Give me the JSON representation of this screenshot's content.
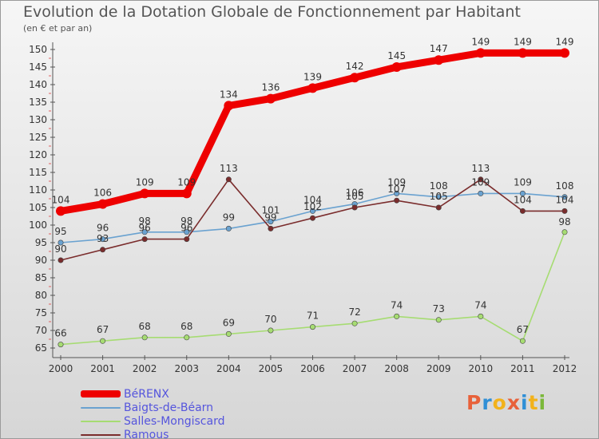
{
  "header": {
    "title": "Evolution de la Dotation Globale de Fonctionnement par Habitant",
    "subtitle": "(en € et par an)"
  },
  "logo": {
    "text": "Proxiti",
    "colors": [
      "#e8613a",
      "#2f8fd6",
      "#f2b21b",
      "#e8613a",
      "#2f8fd6",
      "#f2b21b",
      "#7bb83a"
    ]
  },
  "chart_data": {
    "type": "line",
    "title": "Evolution de la Dotation Globale de Fonctionnement par Habitant",
    "subtitle": "(en € et par an)",
    "xlabel": "",
    "ylabel": "",
    "x": [
      "2000",
      "2001",
      "2002",
      "2003",
      "2004",
      "2005",
      "2006",
      "2007",
      "2008",
      "2009",
      "2010",
      "2011",
      "2012"
    ],
    "ylim": [
      65,
      150
    ],
    "yticks": [
      65,
      70,
      75,
      80,
      85,
      90,
      95,
      100,
      105,
      110,
      115,
      120,
      125,
      130,
      135,
      140,
      145,
      150
    ],
    "grid": false,
    "legend": "bottom-left",
    "series": [
      {
        "name": "BéRENX",
        "color": "#ee0000",
        "values": [
          104,
          106,
          109,
          109,
          134,
          136,
          139,
          142,
          145,
          147,
          149,
          149,
          149
        ]
      },
      {
        "name": "Baigts-de-Béarn",
        "color": "#6aa2d0",
        "values": [
          95,
          96,
          98,
          98,
          99,
          101,
          104,
          106,
          109,
          108,
          109,
          109,
          108
        ]
      },
      {
        "name": "Salles-Mongiscard",
        "color": "#a6dc72",
        "values": [
          66,
          67,
          68,
          68,
          69,
          70,
          71,
          72,
          74,
          73,
          74,
          67,
          98
        ]
      },
      {
        "name": "Ramous",
        "color": "#7a2c2c",
        "values": [
          90,
          93,
          96,
          96,
          113,
          99,
          102,
          105,
          107,
          105,
          113,
          104,
          104
        ]
      }
    ]
  }
}
